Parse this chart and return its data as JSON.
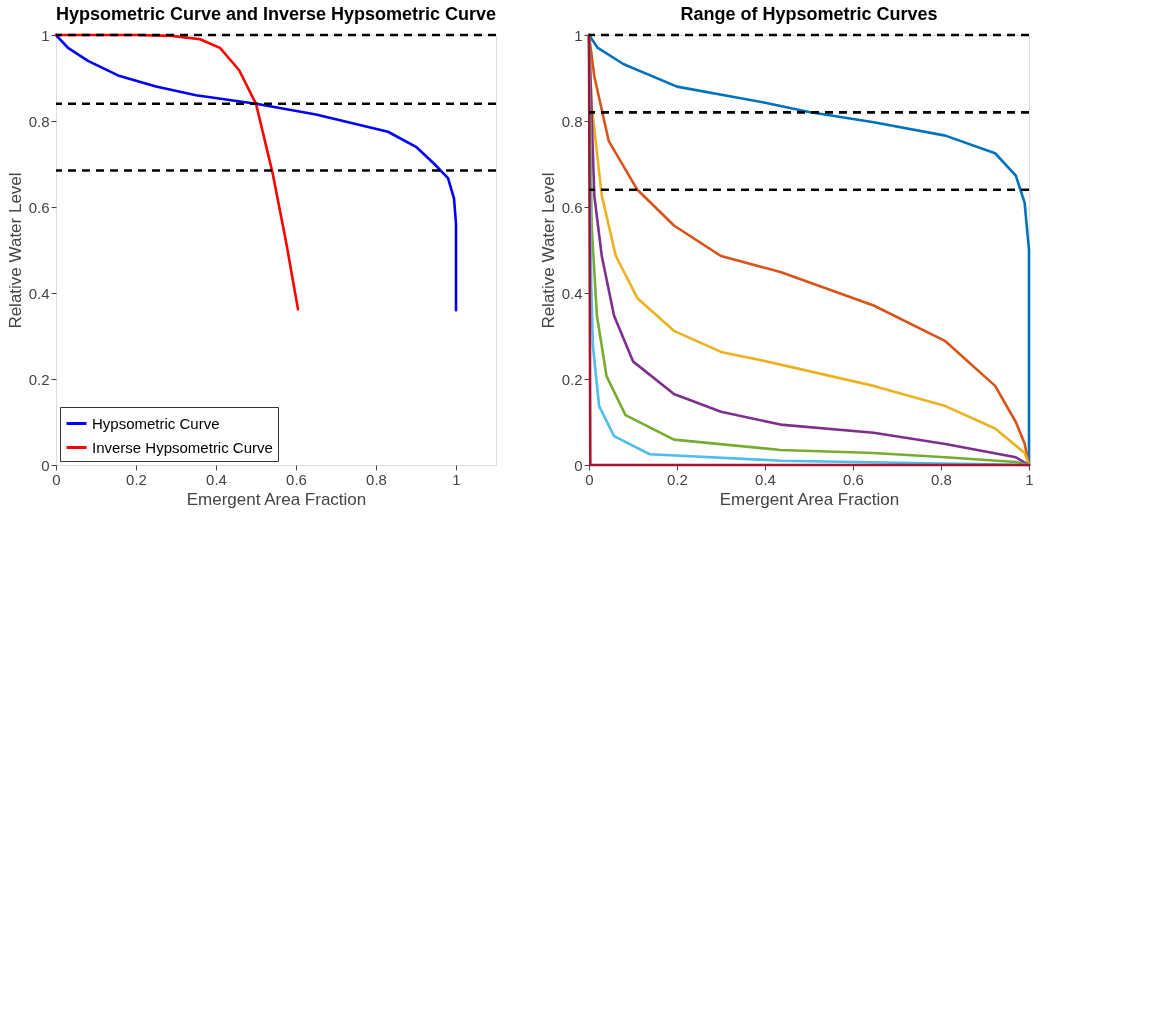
{
  "chart_data": [
    {
      "type": "line",
      "title": "Hypsometric Curve and Inverse Hypsometric Curve",
      "xlabel": "Emergent Area Fraction",
      "ylabel": "Relative Water Level",
      "xlim": [
        0,
        1.1
      ],
      "ylim": [
        0,
        1
      ],
      "xticks": [
        0,
        0.2,
        0.4,
        0.6,
        0.8,
        1
      ],
      "yticks": [
        0,
        0.2,
        0.4,
        0.6,
        0.8,
        1
      ],
      "legend": "bottom left",
      "line_style": "solid",
      "marker": "none",
      "series": [
        {
          "name": "Hypsometric Curve",
          "color": "#0000ff",
          "x": [
            0,
            0.03,
            0.08,
            0.155,
            0.25,
            0.35,
            0.5,
            0.65,
            0.83,
            0.9,
            0.946,
            0.98,
            0.995,
            1,
            1
          ],
          "values": [
            1,
            0.97,
            0.94,
            0.906,
            0.88,
            0.86,
            0.84,
            0.815,
            0.775,
            0.74,
            0.7,
            0.667,
            0.62,
            0.56,
            0.36
          ]
        },
        {
          "name": "Inverse Hypsometric Curve",
          "color": "#ff0000",
          "x": [
            0,
            0.2,
            0.29,
            0.36,
            0.41,
            0.458,
            0.5,
            0.542,
            0.575,
            0.605
          ],
          "values": [
            1,
            1,
            0.998,
            0.99,
            0.97,
            0.918,
            0.84,
            0.677,
            0.52,
            0.362
          ]
        }
      ],
      "ref_lines": [
        {
          "axis": "y",
          "value": 1,
          "color": "#000000",
          "line_style": "dashed"
        },
        {
          "axis": "y",
          "value": 0.84,
          "color": "#000000",
          "line_style": "dashed"
        },
        {
          "axis": "y",
          "value": 0.685,
          "color": "#000000",
          "line_style": "dashed"
        }
      ]
    },
    {
      "type": "line",
      "title": "Range of Hypsometric Curves",
      "xlabel": "Emergent Area Fraction",
      "ylabel": "Relative Water Level",
      "xlim": [
        0,
        1
      ],
      "ylim": [
        0,
        1
      ],
      "xticks": [
        0,
        0.2,
        0.4,
        0.6,
        0.8,
        1
      ],
      "yticks": [
        0,
        0.2,
        0.4,
        0.6,
        0.8,
        1
      ],
      "line_style": "solid",
      "marker": "none",
      "series": [
        {
          "color": "#0072bd",
          "x": [
            0,
            0.02,
            0.079,
            0.2,
            0.403,
            0.5,
            0.647,
            0.81,
            0.923,
            0.97,
            0.99,
            1,
            1
          ],
          "values": [
            1,
            0.97,
            0.932,
            0.88,
            0.842,
            0.821,
            0.797,
            0.766,
            0.725,
            0.673,
            0.61,
            0.5,
            0
          ]
        },
        {
          "color": "#d95319",
          "x": [
            0,
            0.012,
            0.045,
            0.11,
            0.193,
            0.3,
            0.435,
            0.647,
            0.81,
            0.923,
            0.97,
            0.99,
            1
          ],
          "values": [
            1,
            0.904,
            0.753,
            0.64,
            0.557,
            0.486,
            0.449,
            0.371,
            0.288,
            0.184,
            0.1,
            0.05,
            0
          ]
        },
        {
          "color": "#edb120",
          "x": [
            0,
            0.006,
            0.029,
            0.061,
            0.11,
            0.193,
            0.3,
            0.403,
            0.647,
            0.81,
            0.923,
            0.99,
            1
          ],
          "values": [
            1,
            0.837,
            0.627,
            0.486,
            0.388,
            0.312,
            0.263,
            0.241,
            0.184,
            0.137,
            0.085,
            0.028,
            0
          ]
        },
        {
          "color": "#7e2f8e",
          "x": [
            0,
            0.012,
            0.029,
            0.057,
            0.1,
            0.193,
            0.3,
            0.435,
            0.647,
            0.81,
            0.97,
            1
          ],
          "values": [
            1,
            0.627,
            0.486,
            0.347,
            0.241,
            0.165,
            0.124,
            0.094,
            0.075,
            0.049,
            0.018,
            0
          ]
        },
        {
          "color": "#77ac30",
          "x": [
            0,
            0.006,
            0.018,
            0.04,
            0.083,
            0.193,
            0.435,
            0.647,
            0.81,
            0.97,
            1
          ],
          "values": [
            1,
            0.557,
            0.347,
            0.206,
            0.116,
            0.059,
            0.035,
            0.028,
            0.018,
            0.007,
            0
          ]
        },
        {
          "color": "#4dbeee",
          "x": [
            0,
            0.005,
            0.009,
            0.023,
            0.057,
            0.138,
            0.435,
            1
          ],
          "values": [
            1,
            0.418,
            0.276,
            0.137,
            0.067,
            0.025,
            0.01,
            0
          ]
        },
        {
          "color": "#a2142f",
          "x": [
            0,
            0.003,
            1
          ],
          "values": [
            1,
            0,
            0
          ]
        }
      ],
      "ref_lines": [
        {
          "axis": "y",
          "value": 1,
          "color": "#000000",
          "line_style": "dashed"
        },
        {
          "axis": "y",
          "value": 0.82,
          "color": "#000000",
          "line_style": "dashed"
        },
        {
          "axis": "y",
          "value": 0.64,
          "color": "#000000",
          "line_style": "dashed"
        }
      ]
    }
  ]
}
